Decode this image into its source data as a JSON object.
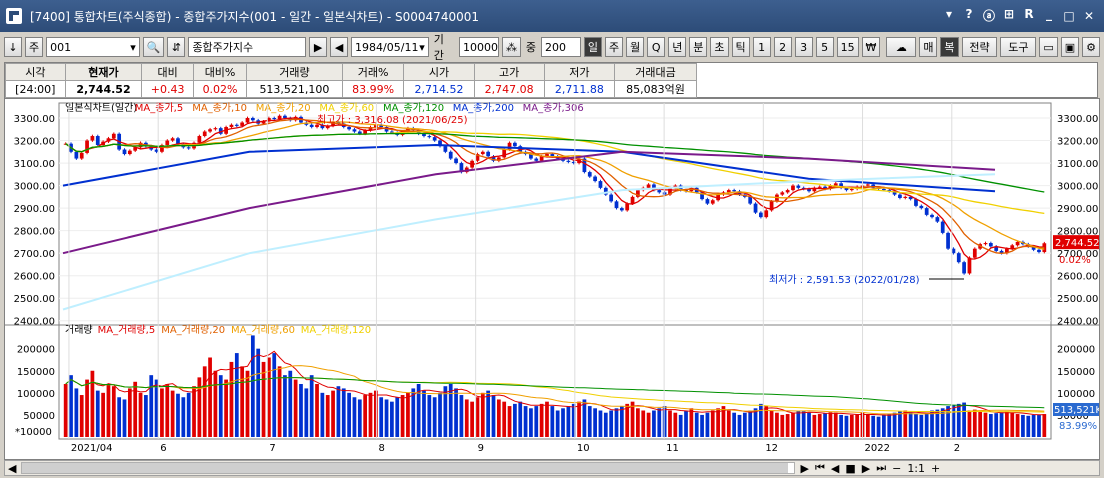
{
  "window": {
    "title": "[7400] 통합차트(주식종합) - 종합주가지수(001 - 일간 - 일본식차트) - S0004740001",
    "btns": [
      "▾",
      "?",
      "ⓐ",
      "⊞",
      "R",
      "_"
    ]
  },
  "toolbar": {
    "code": "001",
    "name": "종합주가지수",
    "date": "1984/05/11",
    "period_label": "기간",
    "period": "10000",
    "count_label": "중",
    "count": "200",
    "periods": [
      "일",
      "주",
      "월",
      "Q",
      "년",
      "분",
      "초",
      "틱",
      "1",
      "2",
      "3",
      "5",
      "15",
      "₩"
    ],
    "active_period": "일",
    "right": [
      "매",
      "복",
      "전략",
      "도구"
    ]
  },
  "quote": {
    "headers": [
      "시각",
      "현재가",
      "대비",
      "대비%",
      "거래량",
      "거래%",
      "시가",
      "고가",
      "저가",
      "거래대금"
    ],
    "values": [
      "[24:00]",
      "2,744.52",
      "+0.43",
      "0.02%",
      "513,521,100",
      "83.99%",
      "2,714.52",
      "2,747.08",
      "2,711.88",
      "85,083억원"
    ]
  },
  "chart_data": {
    "type": "candlestick",
    "price_legend": [
      "일본식차트(일간)",
      "MA_종가,5",
      "MA_종가,10",
      "MA_종가,20",
      "MA_종가,60",
      "MA_종가,120",
      "MA_종가,200",
      "MA_종가,306"
    ],
    "volume_legend": [
      "거래량",
      "MA_거래량,5",
      "MA_거래량,20",
      "MA_거래량,60",
      "MA_거래량,120"
    ],
    "x_ticks": [
      "2021/04",
      "6",
      "7",
      "8",
      "9",
      "10",
      "11",
      "12",
      "2022",
      "2"
    ],
    "y_ticks": [
      3300,
      3200,
      3100,
      3000,
      2900,
      2800,
      2700,
      2600,
      2500,
      2400
    ],
    "vol_ticks": [
      200000,
      150000,
      100000,
      50000
    ],
    "vol_unit": "*10000",
    "ylim": [
      2390,
      3340
    ],
    "high_note": "최고가 : 3,316.08 (2021/06/25)",
    "low_note": "최저가 : 2,591.53 (2022/01/28)",
    "last_price_label": "2,744.52",
    "last_change_label": "0.02%",
    "last_vol_label": "513,521K",
    "last_vol_pct": "83.99%",
    "ma_colors": [
      "#e00000",
      "#e06000",
      "#f0a000",
      "#f0d000",
      "#009000",
      "#0030d0",
      "#7a1a8a",
      "#bfefff"
    ],
    "closes": [
      3186,
      3150,
      3120,
      3145,
      3200,
      3220,
      3180,
      3195,
      3210,
      3230,
      3160,
      3140,
      3155,
      3170,
      3190,
      3175,
      3160,
      3150,
      3180,
      3200,
      3210,
      3185,
      3170,
      3165,
      3190,
      3220,
      3240,
      3250,
      3255,
      3230,
      3260,
      3270,
      3265,
      3280,
      3300,
      3290,
      3275,
      3285,
      3300,
      3295,
      3310,
      3300,
      3290,
      3305,
      3280,
      3270,
      3260,
      3270,
      3255,
      3265,
      3280,
      3275,
      3260,
      3250,
      3240,
      3230,
      3245,
      3260,
      3270,
      3260,
      3240,
      3235,
      3225,
      3240,
      3255,
      3245,
      3230,
      3220,
      3215,
      3200,
      3175,
      3150,
      3120,
      3100,
      3060,
      3080,
      3110,
      3140,
      3150,
      3130,
      3110,
      3125,
      3160,
      3190,
      3175,
      3150,
      3140,
      3120,
      3110,
      3130,
      3140,
      3130,
      3120,
      3110,
      3105,
      3100,
      3120,
      3060,
      3040,
      3020,
      2990,
      2960,
      2930,
      2900,
      2890,
      2920,
      2950,
      2980,
      2990,
      3005,
      2980,
      2970,
      2960,
      2990,
      3000,
      2980,
      2975,
      2990,
      2970,
      2940,
      2920,
      2935,
      2960,
      2970,
      2980,
      2975,
      2960,
      2950,
      2920,
      2880,
      2860,
      2890,
      2930,
      2960,
      2970,
      2980,
      3000,
      2990,
      2985,
      2975,
      2990,
      2995,
      2985,
      3000,
      3010,
      2990,
      2980,
      2985,
      2995,
      3000,
      3005,
      2990,
      2985,
      2980,
      2975,
      2960,
      2945,
      2950,
      2940,
      2910,
      2900,
      2870,
      2860,
      2840,
      2790,
      2720,
      2700,
      2660,
      2610,
      2680,
      2720,
      2740,
      2745,
      2730,
      2710,
      2700,
      2720,
      2735,
      2750,
      2740,
      2730,
      2715,
      2705,
      2744
    ],
    "volumes": [
      120,
      140,
      110,
      95,
      130,
      150,
      105,
      100,
      120,
      115,
      90,
      85,
      110,
      125,
      100,
      95,
      140,
      130,
      110,
      120,
      105,
      98,
      90,
      100,
      115,
      135,
      160,
      180,
      150,
      140,
      130,
      170,
      190,
      160,
      150,
      230,
      200,
      170,
      180,
      190,
      160,
      140,
      150,
      130,
      120,
      110,
      140,
      120,
      100,
      95,
      105,
      115,
      110,
      100,
      90,
      85,
      95,
      100,
      105,
      90,
      85,
      80,
      90,
      95,
      100,
      110,
      120,
      105,
      95,
      90,
      100,
      115,
      120,
      110,
      95,
      85,
      80,
      90,
      100,
      105,
      95,
      85,
      80,
      70,
      75,
      80,
      70,
      65,
      70,
      75,
      80,
      70,
      60,
      65,
      70,
      75,
      80,
      85,
      70,
      65,
      60,
      55,
      60,
      65,
      70,
      75,
      80,
      65,
      60,
      55,
      60,
      65,
      70,
      60,
      55,
      50,
      60,
      65,
      55,
      50,
      55,
      60,
      65,
      70,
      60,
      55,
      50,
      55,
      60,
      65,
      75,
      70,
      60,
      55,
      50,
      52,
      55,
      60,
      58,
      55,
      50,
      52,
      54,
      56,
      55,
      50,
      48,
      50,
      52,
      55,
      50,
      48,
      46,
      50,
      52,
      55,
      58,
      60,
      55,
      52,
      50,
      55,
      60,
      62,
      65,
      70,
      72,
      75,
      78,
      60,
      62,
      58,
      55,
      52,
      54,
      56,
      58,
      55,
      52,
      50,
      48,
      50,
      51,
      52
    ]
  },
  "nav": {
    "ratio": "1:1"
  }
}
